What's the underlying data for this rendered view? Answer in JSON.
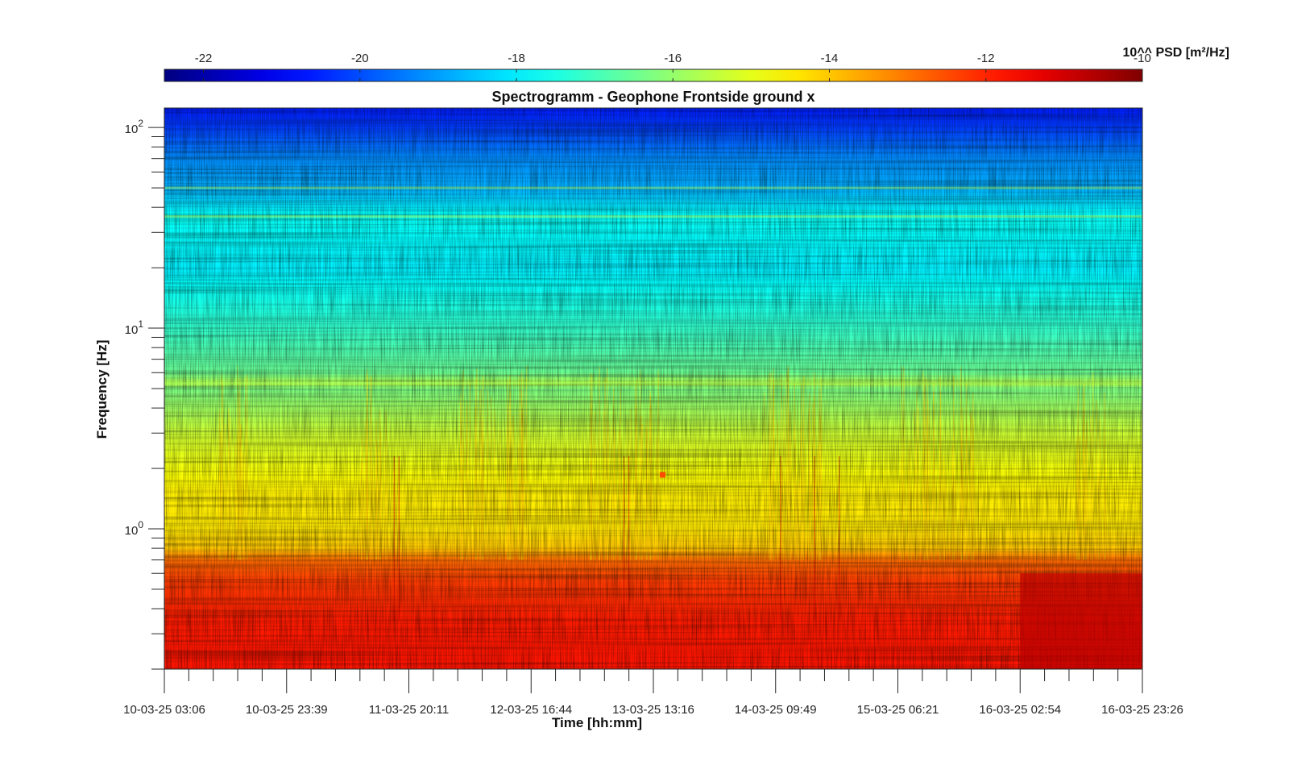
{
  "chart_data": {
    "type": "heatmap",
    "title": "Spectrogramm - Geophone Frontside ground x",
    "xlabel": "Time [hh:mm]",
    "ylabel": "Frequency [Hz]",
    "x_tick_labels": [
      "10-03-25 03:06",
      "10-03-25 23:39",
      "11-03-25 20:11",
      "12-03-25 16:44",
      "13-03-25 13:16",
      "14-03-25 09:49",
      "15-03-25 06:21",
      "16-03-25 02:54",
      "16-03-25 23:26"
    ],
    "y_scale": "log",
    "ylim": [
      0.2,
      125
    ],
    "y_major_ticks": [
      {
        "value": 1,
        "base": "10",
        "exp": "0"
      },
      {
        "value": 10,
        "base": "10",
        "exp": "1"
      },
      {
        "value": 100,
        "base": "10",
        "exp": "2"
      }
    ],
    "colorbar": {
      "label": "10^^ PSD [m²/Hz]",
      "colormap": "jet",
      "range": [
        -22.5,
        -10
      ],
      "ticks": [
        -22,
        -20,
        -18,
        -16,
        -14,
        -12,
        -10
      ],
      "tick_labels": [
        "-22",
        "-20",
        "-18",
        "-16",
        "-14",
        "-12",
        "-10"
      ],
      "location": "top"
    },
    "z_profile_by_frequency": {
      "frequency_hz": [
        0.2,
        0.35,
        0.55,
        0.7,
        0.8,
        1.0,
        1.5,
        2.0,
        3.0,
        5.0,
        5.3,
        6.0,
        8.0,
        10.0,
        20.0,
        36.0,
        50.0,
        70.0,
        100.0,
        125.0
      ],
      "log10_psd": [
        -11.8,
        -11.9,
        -12.3,
        -12.9,
        -14.0,
        -14.4,
        -14.5,
        -14.8,
        -15.3,
        -16.3,
        -15.6,
        -16.5,
        -16.9,
        -17.2,
        -18.0,
        -17.7,
        -18.8,
        -19.2,
        -20.2,
        -20.6
      ]
    },
    "notable_features": [
      {
        "time": "16-03-25 02:54 to 16-03-25 23:26",
        "frequency_hz": [
          0.2,
          0.6
        ],
        "log10_psd": -10.7
      },
      {
        "time": "13-03-25 13:16",
        "frequency_hz": 1.85,
        "log10_psd": -12.5
      },
      {
        "frequency_hz": 5.3,
        "note": "horizontal band"
      },
      {
        "frequency_hz": 36,
        "note": "horizontal band"
      },
      {
        "frequency_hz": 50,
        "note": "horizontal band"
      }
    ]
  }
}
